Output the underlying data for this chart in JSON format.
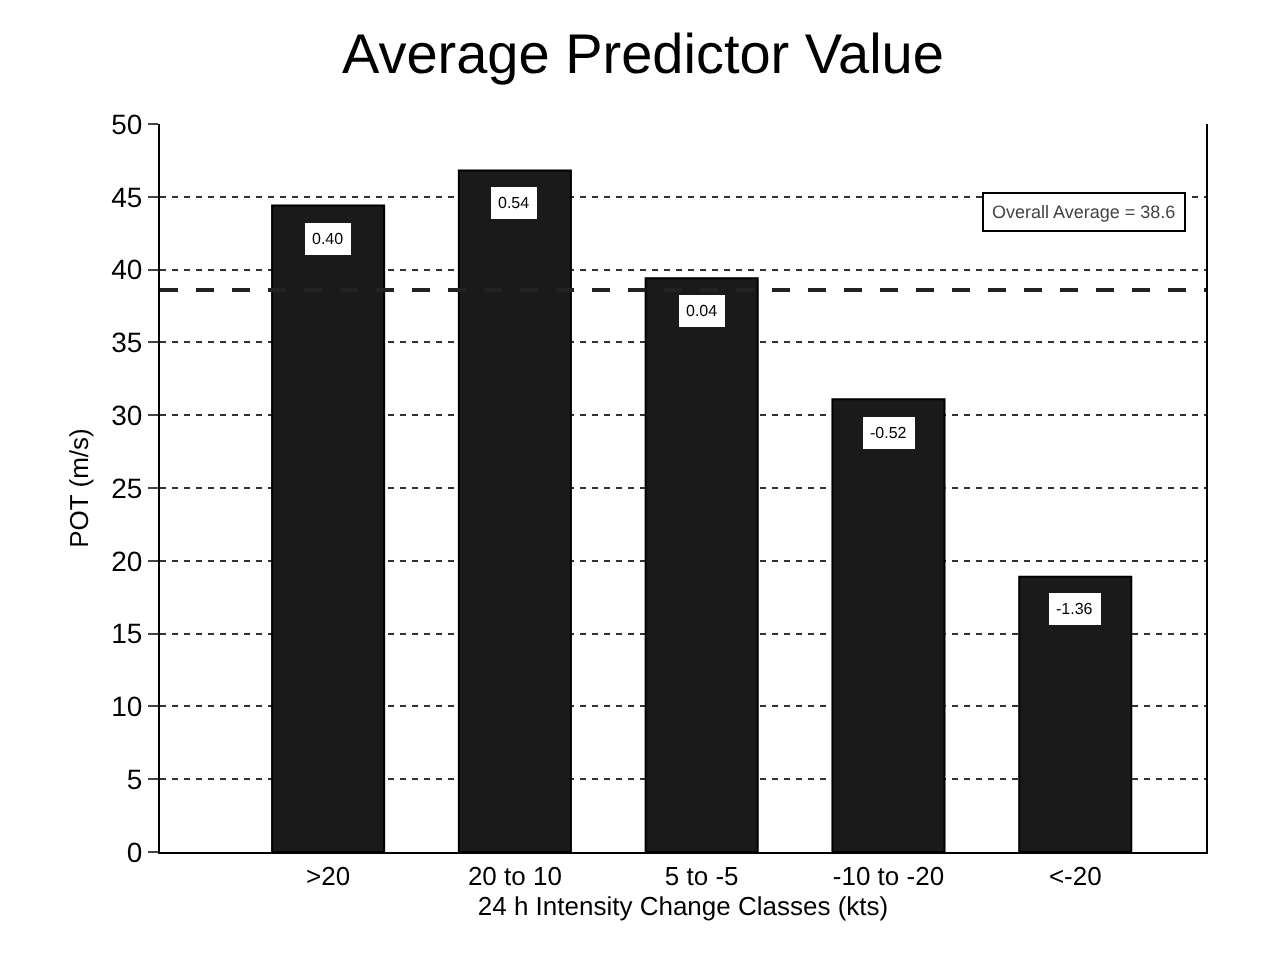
{
  "chart_data": {
    "type": "bar",
    "title": "Average Predictor Value",
    "xlabel": "24 h Intensity Change Classes (kts)",
    "ylabel": "POT (m/s)",
    "categories": [
      ">20",
      "20 to 10",
      "5 to -5",
      "-10 to -20",
      "<-20"
    ],
    "values": [
      44.4,
      46.8,
      39.4,
      31.1,
      18.9
    ],
    "color": "#1a1a1a",
    "ylim": [
      0,
      50
    ],
    "yticks": [
      0,
      5,
      10,
      15,
      20,
      25,
      30,
      35,
      40,
      45,
      50
    ],
    "grid": "y",
    "ref_lines": [
      {
        "axis": "y",
        "value": 38.6,
        "label": "Overall Average = 38.6",
        "line_style": "dashed",
        "color": "#222222"
      }
    ],
    "annotations": [
      {
        "text": "0.40",
        "x": ">20",
        "y": 44.4
      },
      {
        "text": "0.54",
        "x": "20 to 10",
        "y": 46.8
      },
      {
        "text": "0.04",
        "x": "5 to -5",
        "y": 39.4
      },
      {
        "text": "-0.52",
        "x": "-10 to -20",
        "y": 31.1
      },
      {
        "text": "-1.36",
        "x": "<-20",
        "y": 18.9
      }
    ]
  }
}
